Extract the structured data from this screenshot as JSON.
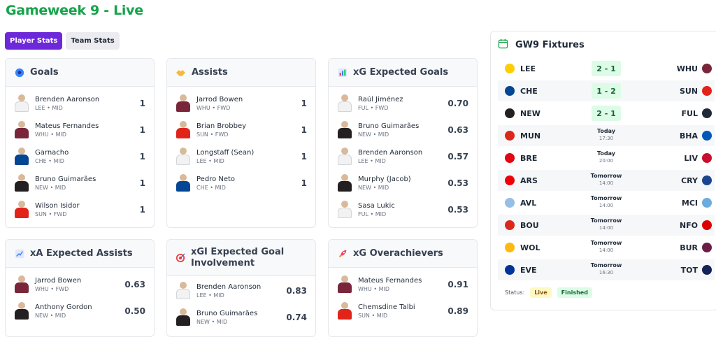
{
  "page": {
    "title": "Gameweek 9 - Live"
  },
  "tabs": [
    {
      "label": "Player Stats",
      "active": true
    },
    {
      "label": "Team Stats",
      "active": false
    }
  ],
  "cards": {
    "goals": {
      "title": "Goals",
      "icon": "soccer-ball-icon",
      "players": [
        {
          "name": "Brenden Aaronson",
          "team": "LEE",
          "pos": "MID",
          "value": "1",
          "kit": "#f2f2f2"
        },
        {
          "name": "Mateus Fernandes",
          "team": "WHU",
          "pos": "MID",
          "value": "1",
          "kit": "#7a263a"
        },
        {
          "name": "Garnacho",
          "team": "CHE",
          "pos": "MID",
          "value": "1",
          "kit": "#034694"
        },
        {
          "name": "Bruno Guimarães",
          "team": "NEW",
          "pos": "MID",
          "value": "1",
          "kit": "#241f20"
        },
        {
          "name": "Wilson Isidor",
          "team": "SUN",
          "pos": "FWD",
          "value": "1",
          "kit": "#e2231a"
        }
      ]
    },
    "assists": {
      "title": "Assists",
      "icon": "handshake-icon",
      "players": [
        {
          "name": "Jarrod Bowen",
          "team": "WHU",
          "pos": "FWD",
          "value": "1",
          "kit": "#7a263a"
        },
        {
          "name": "Brian Brobbey",
          "team": "SUN",
          "pos": "FWD",
          "value": "1",
          "kit": "#e2231a"
        },
        {
          "name": "Longstaff (Sean)",
          "team": "LEE",
          "pos": "MID",
          "value": "1",
          "kit": "#f2f2f2"
        },
        {
          "name": "Pedro Neto",
          "team": "CHE",
          "pos": "MID",
          "value": "1",
          "kit": "#034694"
        }
      ]
    },
    "xg": {
      "title": "xG Expected Goals",
      "icon": "bar-chart-icon",
      "players": [
        {
          "name": "Raúl Jiménez",
          "team": "FUL",
          "pos": "FWD",
          "value": "0.70",
          "kit": "#f2f2f2"
        },
        {
          "name": "Bruno Guimarães",
          "team": "NEW",
          "pos": "MID",
          "value": "0.63",
          "kit": "#241f20"
        },
        {
          "name": "Brenden Aaronson",
          "team": "LEE",
          "pos": "MID",
          "value": "0.57",
          "kit": "#f2f2f2"
        },
        {
          "name": "Murphy (Jacob)",
          "team": "NEW",
          "pos": "MID",
          "value": "0.53",
          "kit": "#241f20"
        },
        {
          "name": "Sasa Lukic",
          "team": "FUL",
          "pos": "MID",
          "value": "0.53",
          "kit": "#f2f2f2"
        }
      ]
    },
    "xa": {
      "title": "xA Expected Assists",
      "icon": "trend-chart-icon",
      "players": [
        {
          "name": "Jarrod Bowen",
          "team": "WHU",
          "pos": "FWD",
          "value": "0.63",
          "kit": "#7a263a"
        },
        {
          "name": "Anthony Gordon",
          "team": "NEW",
          "pos": "MID",
          "value": "0.50",
          "kit": "#241f20"
        }
      ]
    },
    "xgi": {
      "title": "xGI Expected Goal Involvement",
      "icon": "target-icon",
      "players": [
        {
          "name": "Brenden Aaronson",
          "team": "LEE",
          "pos": "MID",
          "value": "0.83",
          "kit": "#f2f2f2"
        },
        {
          "name": "Bruno Guimarães",
          "team": "NEW",
          "pos": "MID",
          "value": "0.74",
          "kit": "#241f20"
        }
      ]
    },
    "overachievers": {
      "title": "xG Overachievers",
      "icon": "rocket-icon",
      "players": [
        {
          "name": "Mateus Fernandes",
          "team": "WHU",
          "pos": "MID",
          "value": "0.91",
          "kit": "#7a263a"
        },
        {
          "name": "Chemsdine Talbi",
          "team": "SUN",
          "pos": "MID",
          "value": "0.89",
          "kit": "#e2231a"
        }
      ]
    }
  },
  "fixtures": {
    "title": "GW9 Fixtures",
    "items": [
      {
        "home": "LEE",
        "away": "WHU",
        "score": "2 - 1",
        "home_color": "#ffcd00",
        "away_color": "#7a263a"
      },
      {
        "home": "CHE",
        "away": "SUN",
        "score": "1 - 2",
        "home_color": "#034694",
        "away_color": "#e2231a"
      },
      {
        "home": "NEW",
        "away": "FUL",
        "score": "2 - 1",
        "home_color": "#241f20",
        "away_color": "#1f2937"
      },
      {
        "home": "MUN",
        "away": "BHA",
        "day": "Today",
        "time": "17:30",
        "home_color": "#da291c",
        "away_color": "#0057b8"
      },
      {
        "home": "BRE",
        "away": "LIV",
        "day": "Today",
        "time": "20:00",
        "home_color": "#e30613",
        "away_color": "#c8102e"
      },
      {
        "home": "ARS",
        "away": "CRY",
        "day": "Tomorrow",
        "time": "14:00",
        "home_color": "#ef0107",
        "away_color": "#1b458f"
      },
      {
        "home": "AVL",
        "away": "MCI",
        "day": "Tomorrow",
        "time": "14:00",
        "home_color": "#95bfe5",
        "away_color": "#6cabdd"
      },
      {
        "home": "BOU",
        "away": "NFO",
        "day": "Tomorrow",
        "time": "14:00",
        "home_color": "#da291c",
        "away_color": "#dd0000"
      },
      {
        "home": "WOL",
        "away": "BUR",
        "day": "Tomorrow",
        "time": "14:00",
        "home_color": "#fdb913",
        "away_color": "#6c1d45"
      },
      {
        "home": "EVE",
        "away": "TOT",
        "day": "Tomorrow",
        "time": "16:30",
        "home_color": "#003399",
        "away_color": "#132257"
      }
    ],
    "status_label": "Status:",
    "legend": {
      "live": "Live",
      "finished": "Finished"
    }
  },
  "colors": {
    "accent": "#6d28d9",
    "title_green": "#16a34a",
    "score_bg": "#dcfce7"
  }
}
